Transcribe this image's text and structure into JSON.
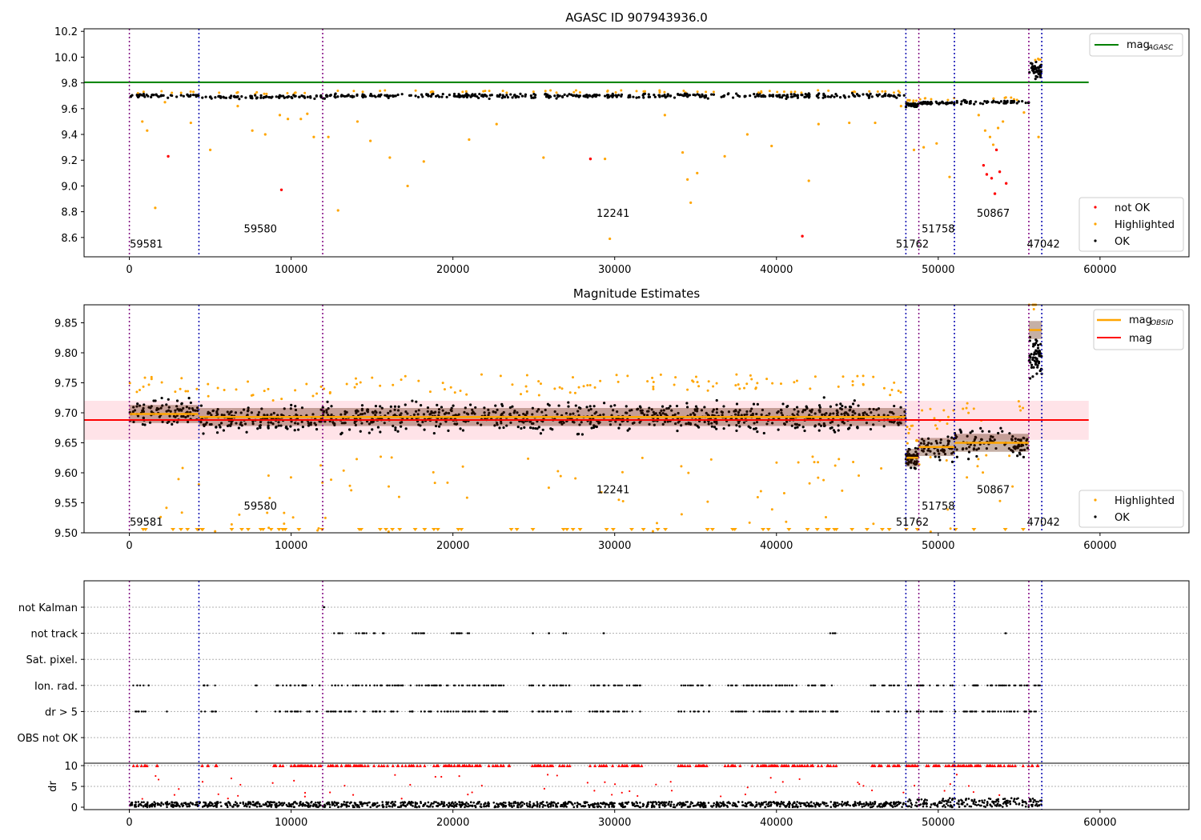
{
  "chart_data": [
    {
      "type": "scatter",
      "title": "AGASC ID 907943936.0",
      "xlim": [
        -2800,
        65500
      ],
      "ylim": [
        8.45,
        10.22
      ],
      "x_ticks": [
        0,
        10000,
        20000,
        30000,
        40000,
        50000,
        60000
      ],
      "y_ticks": [
        "8.6",
        "8.8",
        "9.0",
        "9.2",
        "9.4",
        "9.6",
        "9.8",
        "10.0",
        "10.2"
      ],
      "reference_lines": [
        {
          "name": "mag_AGASC",
          "y": 9.805,
          "x_end": 59300,
          "color": "#008000"
        }
      ],
      "legend": {
        "placement": "top-right",
        "entries": [
          {
            "name": "mag",
            "sub": "AGASC",
            "color": "#008000",
            "marker": "line"
          }
        ]
      },
      "legend2": {
        "placement": "bottom-right",
        "entries": [
          {
            "name": "not OK",
            "color": "#ff0000",
            "marker": "dot"
          },
          {
            "name": "Highlighted",
            "color": "#ffa500",
            "marker": "dot"
          },
          {
            "name": "OK",
            "color": "#000000",
            "marker": "dot"
          }
        ]
      },
      "segments": [
        {
          "x0": 0,
          "x1": 4300,
          "level": 9.7,
          "spread": 0.02
        },
        {
          "x0": 4300,
          "x1": 11950,
          "level": 9.69,
          "spread": 0.02
        },
        {
          "x0": 11950,
          "x1": 48000,
          "level": 9.7,
          "spread": 0.025
        },
        {
          "x0": 48000,
          "x1": 48800,
          "level": 9.63,
          "spread": 0.02
        },
        {
          "x0": 48800,
          "x1": 51000,
          "level": 9.645,
          "spread": 0.02
        },
        {
          "x0": 51000,
          "x1": 55600,
          "level": 9.65,
          "spread": 0.02
        },
        {
          "x0": 55600,
          "x1": 56400,
          "level": 9.9,
          "spread": 0.08
        }
      ],
      "not_ok_points": [
        [
          2400,
          9.23
        ],
        [
          9400,
          8.97
        ],
        [
          28500,
          9.21
        ],
        [
          41600,
          8.61
        ],
        [
          52800,
          9.16
        ],
        [
          53000,
          9.09
        ],
        [
          53300,
          9.06
        ],
        [
          53500,
          8.94
        ],
        [
          53800,
          9.11
        ],
        [
          54200,
          9.02
        ],
        [
          53600,
          9.28
        ]
      ],
      "highlighted_points": [
        [
          1600,
          8.83
        ],
        [
          2200,
          9.65
        ],
        [
          5000,
          9.28
        ],
        [
          6700,
          9.62
        ],
        [
          7600,
          9.43
        ],
        [
          8400,
          9.4
        ],
        [
          9300,
          9.55
        ],
        [
          9800,
          9.52
        ],
        [
          10600,
          9.52
        ],
        [
          11000,
          9.56
        ],
        [
          11400,
          9.38
        ],
        [
          12900,
          8.81
        ],
        [
          14900,
          9.35
        ],
        [
          16100,
          9.22
        ],
        [
          17200,
          9.0
        ],
        [
          18200,
          9.19
        ],
        [
          21000,
          9.36
        ],
        [
          22700,
          9.48
        ],
        [
          25600,
          9.22
        ],
        [
          29400,
          9.21
        ],
        [
          29700,
          8.59
        ],
        [
          33100,
          9.55
        ],
        [
          34200,
          9.26
        ],
        [
          34500,
          9.05
        ],
        [
          34700,
          8.87
        ],
        [
          35100,
          9.1
        ],
        [
          36800,
          9.23
        ],
        [
          38200,
          9.4
        ],
        [
          39700,
          9.31
        ],
        [
          42000,
          9.04
        ],
        [
          42600,
          9.48
        ],
        [
          44500,
          9.49
        ],
        [
          46100,
          9.49
        ],
        [
          47700,
          9.62
        ],
        [
          48500,
          9.28
        ],
        [
          49100,
          9.3
        ],
        [
          49900,
          9.33
        ],
        [
          50700,
          9.07
        ],
        [
          52500,
          9.55
        ],
        [
          52900,
          9.43
        ],
        [
          53200,
          9.38
        ],
        [
          53400,
          9.32
        ],
        [
          53700,
          9.45
        ],
        [
          54000,
          9.5
        ],
        [
          55300,
          9.57
        ],
        [
          56200,
          9.38
        ],
        [
          800,
          9.5
        ],
        [
          1100,
          9.43
        ],
        [
          3800,
          9.49
        ],
        [
          12300,
          9.38
        ],
        [
          14100,
          9.5
        ]
      ],
      "obs_boundaries": [
        0,
        4300,
        11950,
        48000,
        48800,
        51000,
        55600,
        56400
      ],
      "obs_labels": [
        {
          "text": "59581",
          "x": 1050,
          "y": 8.52
        },
        {
          "text": "59580",
          "x": 8100,
          "y": 8.64
        },
        {
          "text": "12241",
          "x": 29900,
          "y": 8.76
        },
        {
          "text": "51762",
          "x": 48400,
          "y": 8.52
        },
        {
          "text": "51758",
          "x": 50000,
          "y": 8.64
        },
        {
          "text": "50867",
          "x": 53400,
          "y": 8.76
        },
        {
          "text": "47042",
          "x": 56500,
          "y": 8.52
        }
      ]
    },
    {
      "type": "scatter",
      "title": "Magnitude Estimates",
      "xlim": [
        -2800,
        65500
      ],
      "ylim": [
        9.5,
        9.88
      ],
      "x_ticks": [
        0,
        10000,
        20000,
        30000,
        40000,
        50000,
        60000
      ],
      "y_ticks": [
        "9.50",
        "9.55",
        "9.60",
        "9.65",
        "9.70",
        "9.75",
        "9.80",
        "9.85"
      ],
      "mag": {
        "value": 9.688,
        "band": [
          9.655,
          9.72
        ],
        "x_end": 59300,
        "color": "#ff0000"
      },
      "mag_obsid": [
        {
          "x0": 0,
          "x1": 4300,
          "value": 9.698
        },
        {
          "x0": 4300,
          "x1": 11950,
          "value": 9.693
        },
        {
          "x0": 11950,
          "x1": 48000,
          "value": 9.693
        },
        {
          "x0": 48000,
          "x1": 48800,
          "value": 9.625
        },
        {
          "x0": 48800,
          "x1": 51000,
          "value": 9.643
        },
        {
          "x0": 51000,
          "x1": 55600,
          "value": 9.65
        },
        {
          "x0": 55600,
          "x1": 56400,
          "value": 9.838
        }
      ],
      "segments": [
        {
          "x0": 0,
          "x1": 4300,
          "level": 9.7,
          "spread": 0.025
        },
        {
          "x0": 4300,
          "x1": 11950,
          "level": 9.69,
          "spread": 0.025
        },
        {
          "x0": 11950,
          "x1": 48000,
          "level": 9.693,
          "spread": 0.03
        },
        {
          "x0": 48000,
          "x1": 48800,
          "level": 9.625,
          "spread": 0.02
        },
        {
          "x0": 48800,
          "x1": 51000,
          "level": 9.643,
          "spread": 0.025
        },
        {
          "x0": 51000,
          "x1": 55600,
          "level": 9.65,
          "spread": 0.03
        },
        {
          "x0": 55600,
          "x1": 56400,
          "level": 9.8,
          "spread": 0.05
        }
      ],
      "legend": {
        "placement": "top-right",
        "entries": [
          {
            "name": "mag",
            "sub": "OBSID",
            "color": "#ffa500",
            "marker": "line"
          },
          {
            "name": "mag",
            "sub": "",
            "color": "#ff0000",
            "marker": "line"
          }
        ]
      },
      "legend2": {
        "placement": "bottom-right",
        "entries": [
          {
            "name": "Highlighted",
            "color": "#ffa500",
            "marker": "dot"
          },
          {
            "name": "OK",
            "color": "#000000",
            "marker": "dot"
          }
        ]
      },
      "obs_boundaries": [
        0,
        4300,
        11950,
        48000,
        48800,
        51000,
        55600,
        56400
      ],
      "obs_labels": [
        {
          "text": "59581",
          "x": 1050,
          "y": 9.512
        },
        {
          "text": "59580",
          "x": 8100,
          "y": 9.539
        },
        {
          "text": "12241",
          "x": 29900,
          "y": 9.566
        },
        {
          "text": "51762",
          "x": 48400,
          "y": 9.512
        },
        {
          "text": "51758",
          "x": 50000,
          "y": 9.539
        },
        {
          "text": "50867",
          "x": 53400,
          "y": 9.566
        },
        {
          "text": "47042",
          "x": 56500,
          "y": 9.512
        }
      ]
    },
    {
      "type": "scatter",
      "title": "",
      "xlim": [
        -2800,
        65500
      ],
      "categories": [
        "not Kalman",
        "not track",
        "Sat. pixel.",
        "Ion. rad.",
        "dr > 5",
        "OBS not OK"
      ],
      "dr_ticks": [
        "10",
        "5",
        "0"
      ],
      "dr_ylabel": "dr",
      "x_ticks": [
        0,
        10000,
        20000,
        30000,
        40000,
        50000,
        60000
      ],
      "obs_boundaries": [
        0,
        4300,
        11950,
        48000,
        48800,
        51000,
        55600,
        56400
      ],
      "flag_clusters": {
        "not Kalman": [
          [
            11950,
            12050
          ]
        ],
        "not track": [
          [
            12600,
            13200
          ],
          [
            13900,
            14700
          ],
          [
            15100,
            15800
          ],
          [
            17300,
            18500
          ],
          [
            19900,
            21500
          ],
          [
            24900,
            25000
          ],
          [
            25800,
            26000
          ],
          [
            26800,
            27000
          ],
          [
            29300,
            29400
          ],
          [
            43200,
            43700
          ],
          [
            54100,
            54200
          ]
        ],
        "Ion. rad.": [
          [
            200,
            1200
          ],
          [
            4400,
            5400
          ],
          [
            7800,
            7900
          ],
          [
            9000,
            11900
          ],
          [
            12000,
            23500
          ],
          [
            24700,
            27300
          ],
          [
            28400,
            31700
          ],
          [
            33900,
            35900
          ],
          [
            36800,
            43800
          ],
          [
            45800,
            47600
          ],
          [
            48000,
            56400
          ]
        ],
        "dr > 5": [
          [
            200,
            1200
          ],
          [
            2300,
            2400
          ],
          [
            4400,
            5400
          ],
          [
            7800,
            7900
          ],
          [
            9000,
            11900
          ],
          [
            12000,
            23500
          ],
          [
            24700,
            27300
          ],
          [
            28400,
            31700
          ],
          [
            33900,
            35900
          ],
          [
            36800,
            43800
          ],
          [
            45800,
            47600
          ],
          [
            48000,
            56400
          ]
        ]
      },
      "dr_clusters": [
        [
          200,
          1200
        ],
        [
          1700,
          1800
        ],
        [
          4400,
          5400
        ],
        [
          8900,
          11900
        ],
        [
          12000,
          23500
        ],
        [
          24700,
          27300
        ],
        [
          28400,
          31700
        ],
        [
          33900,
          35900
        ],
        [
          36800,
          43800
        ],
        [
          45800,
          47600
        ],
        [
          48000,
          56400
        ]
      ]
    }
  ]
}
